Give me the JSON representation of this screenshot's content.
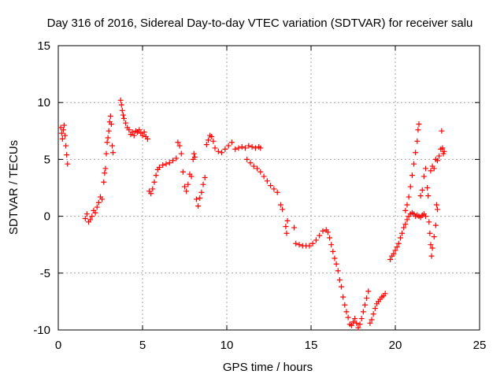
{
  "chart_data": {
    "type": "scatter",
    "title": "Day 316 of 2016, Sidereal Day-to-day VTEC variation (SDTVAR) for receiver salu",
    "xlabel": "GPS time / hours",
    "ylabel": "SDTVAR / TECUs",
    "xlim": [
      0,
      25
    ],
    "ylim": [
      -10,
      15
    ],
    "grid": true,
    "marker": "+",
    "color": "#ff0000",
    "x_ticks": [
      "0",
      "5",
      "10",
      "15",
      "20",
      "25"
    ],
    "y_ticks": [
      "-10",
      "-5",
      "0",
      "5",
      "10",
      "15"
    ],
    "x_tick_values": [
      0,
      5,
      10,
      15,
      20,
      25
    ],
    "y_tick_values": [
      -10,
      -5,
      0,
      5,
      10,
      15
    ],
    "series": [
      {
        "name": "SDTVAR",
        "points": [
          [
            0.15,
            7.8
          ],
          [
            0.2,
            7.3
          ],
          [
            0.25,
            6.8
          ],
          [
            0.3,
            7.6
          ],
          [
            0.35,
            8.0
          ],
          [
            0.4,
            7.1
          ],
          [
            0.45,
            6.2
          ],
          [
            0.5,
            5.4
          ],
          [
            0.55,
            4.6
          ],
          [
            1.6,
            -0.2
          ],
          [
            1.7,
            0.2
          ],
          [
            1.8,
            -0.5
          ],
          [
            1.9,
            -0.3
          ],
          [
            2.0,
            0.0
          ],
          [
            2.1,
            0.5
          ],
          [
            2.2,
            0.3
          ],
          [
            2.3,
            0.8
          ],
          [
            2.4,
            1.2
          ],
          [
            2.5,
            1.7
          ],
          [
            2.6,
            1.5
          ],
          [
            2.7,
            3.0
          ],
          [
            2.75,
            3.8
          ],
          [
            2.8,
            4.2
          ],
          [
            2.85,
            5.5
          ],
          [
            2.9,
            6.5
          ],
          [
            2.95,
            6.9
          ],
          [
            3.0,
            7.5
          ],
          [
            3.05,
            8.3
          ],
          [
            3.1,
            8.8
          ],
          [
            3.15,
            8.1
          ],
          [
            3.2,
            6.2
          ],
          [
            3.25,
            5.6
          ],
          [
            3.7,
            10.2
          ],
          [
            3.75,
            9.8
          ],
          [
            3.8,
            9.3
          ],
          [
            3.85,
            8.9
          ],
          [
            3.9,
            8.6
          ],
          [
            4.0,
            8.2
          ],
          [
            4.1,
            7.8
          ],
          [
            4.2,
            7.6
          ],
          [
            4.3,
            7.2
          ],
          [
            4.4,
            7.4
          ],
          [
            4.5,
            7.1
          ],
          [
            4.6,
            7.5
          ],
          [
            4.7,
            7.4
          ],
          [
            4.8,
            7.6
          ],
          [
            4.9,
            7.3
          ],
          [
            5.0,
            7.1
          ],
          [
            5.1,
            7.4
          ],
          [
            5.2,
            7.0
          ],
          [
            5.3,
            6.8
          ],
          [
            5.4,
            2.2
          ],
          [
            5.5,
            2.0
          ],
          [
            5.6,
            2.4
          ],
          [
            5.7,
            3.0
          ],
          [
            5.8,
            3.6
          ],
          [
            5.9,
            4.1
          ],
          [
            6.0,
            4.3
          ],
          [
            6.2,
            4.5
          ],
          [
            6.4,
            4.6
          ],
          [
            6.6,
            4.7
          ],
          [
            6.8,
            4.9
          ],
          [
            7.0,
            5.1
          ],
          [
            7.1,
            6.5
          ],
          [
            7.2,
            6.2
          ],
          [
            7.3,
            5.5
          ],
          [
            7.4,
            3.9
          ],
          [
            7.5,
            2.6
          ],
          [
            7.6,
            2.2
          ],
          [
            7.7,
            2.8
          ],
          [
            7.8,
            3.7
          ],
          [
            7.9,
            3.5
          ],
          [
            8.0,
            5.0
          ],
          [
            8.05,
            5.5
          ],
          [
            8.1,
            5.2
          ],
          [
            8.2,
            1.5
          ],
          [
            8.3,
            0.9
          ],
          [
            8.4,
            1.6
          ],
          [
            8.5,
            2.1
          ],
          [
            8.6,
            2.8
          ],
          [
            8.7,
            3.4
          ],
          [
            8.8,
            6.3
          ],
          [
            8.9,
            6.7
          ],
          [
            9.0,
            7.1
          ],
          [
            9.1,
            7.0
          ],
          [
            9.2,
            6.6
          ],
          [
            9.3,
            6.0
          ],
          [
            9.5,
            5.7
          ],
          [
            9.7,
            5.6
          ],
          [
            9.9,
            5.9
          ],
          [
            10.1,
            6.2
          ],
          [
            10.3,
            6.5
          ],
          [
            10.5,
            5.9
          ],
          [
            10.7,
            6.0
          ],
          [
            10.9,
            6.1
          ],
          [
            11.1,
            6.0
          ],
          [
            11.3,
            6.2
          ],
          [
            11.5,
            6.1
          ],
          [
            11.7,
            6.0
          ],
          [
            11.9,
            6.1
          ],
          [
            12.0,
            6.0
          ],
          [
            11.2,
            5.0
          ],
          [
            11.4,
            4.7
          ],
          [
            11.6,
            4.4
          ],
          [
            11.8,
            4.2
          ],
          [
            12.0,
            3.9
          ],
          [
            12.2,
            3.5
          ],
          [
            12.4,
            3.1
          ],
          [
            12.6,
            2.7
          ],
          [
            12.8,
            2.4
          ],
          [
            13.0,
            2.1
          ],
          [
            13.2,
            1.0
          ],
          [
            13.3,
            0.6
          ],
          [
            13.5,
            -0.9
          ],
          [
            13.55,
            -1.5
          ],
          [
            13.6,
            -0.4
          ],
          [
            14.0,
            -1.0
          ],
          [
            14.1,
            -2.4
          ],
          [
            14.3,
            -2.5
          ],
          [
            14.5,
            -2.6
          ],
          [
            14.7,
            -2.6
          ],
          [
            14.9,
            -2.6
          ],
          [
            15.1,
            -2.4
          ],
          [
            15.3,
            -2.1
          ],
          [
            15.5,
            -1.7
          ],
          [
            15.7,
            -1.3
          ],
          [
            15.9,
            -1.2
          ],
          [
            16.0,
            -1.4
          ],
          [
            16.1,
            -1.9
          ],
          [
            16.2,
            -2.5
          ],
          [
            16.3,
            -3.1
          ],
          [
            16.4,
            -3.7
          ],
          [
            16.5,
            -4.2
          ],
          [
            16.6,
            -4.8
          ],
          [
            16.7,
            -5.6
          ],
          [
            16.8,
            -6.2
          ],
          [
            16.9,
            -7.1
          ],
          [
            17.0,
            -7.8
          ],
          [
            17.1,
            -8.4
          ],
          [
            17.2,
            -8.9
          ],
          [
            17.3,
            -9.5
          ],
          [
            17.4,
            -9.6
          ],
          [
            17.5,
            -9.3
          ],
          [
            17.6,
            -9.0
          ],
          [
            17.7,
            -9.4
          ],
          [
            17.8,
            -9.8
          ],
          [
            17.9,
            -9.5
          ],
          [
            18.0,
            -9.0
          ],
          [
            18.1,
            -8.4
          ],
          [
            18.2,
            -7.8
          ],
          [
            18.3,
            -7.2
          ],
          [
            18.4,
            -6.6
          ],
          [
            18.5,
            -9.4
          ],
          [
            18.6,
            -9.1
          ],
          [
            18.7,
            -8.6
          ],
          [
            18.8,
            -8.1
          ],
          [
            18.9,
            -7.7
          ],
          [
            19.0,
            -7.5
          ],
          [
            19.1,
            -7.3
          ],
          [
            19.2,
            -7.1
          ],
          [
            19.3,
            -7.0
          ],
          [
            19.4,
            -6.8
          ],
          [
            19.7,
            -3.8
          ],
          [
            19.8,
            -3.5
          ],
          [
            19.9,
            -3.3
          ],
          [
            20.0,
            -3.0
          ],
          [
            20.1,
            -2.7
          ],
          [
            20.2,
            -2.4
          ],
          [
            20.3,
            -1.9
          ],
          [
            20.4,
            -1.5
          ],
          [
            20.5,
            -1.0
          ],
          [
            20.6,
            -0.7
          ],
          [
            20.7,
            -0.3
          ],
          [
            20.8,
            0.0
          ],
          [
            20.9,
            0.2
          ],
          [
            21.0,
            0.3
          ],
          [
            21.1,
            0.2
          ],
          [
            21.2,
            0.0
          ],
          [
            21.3,
            0.1
          ],
          [
            21.4,
            0.0
          ],
          [
            21.5,
            -0.1
          ],
          [
            21.6,
            0.1
          ],
          [
            21.7,
            0.2
          ],
          [
            21.8,
            0.0
          ],
          [
            20.6,
            0.5
          ],
          [
            20.7,
            1.0
          ],
          [
            20.8,
            1.7
          ],
          [
            20.9,
            2.6
          ],
          [
            21.0,
            3.6
          ],
          [
            21.1,
            4.6
          ],
          [
            21.2,
            5.6
          ],
          [
            21.3,
            6.6
          ],
          [
            21.35,
            7.6
          ],
          [
            21.4,
            8.1
          ],
          [
            21.5,
            1.8
          ],
          [
            21.6,
            2.3
          ],
          [
            21.7,
            3.5
          ],
          [
            21.8,
            4.2
          ],
          [
            21.9,
            2.5
          ],
          [
            21.95,
            1.8
          ],
          [
            22.0,
            -0.5
          ],
          [
            22.05,
            -1.5
          ],
          [
            22.1,
            -2.5
          ],
          [
            22.15,
            -3.5
          ],
          [
            22.2,
            -2.8
          ],
          [
            22.3,
            -1.8
          ],
          [
            22.4,
            -0.8
          ],
          [
            22.5,
            0.6
          ],
          [
            22.45,
            1.0
          ],
          [
            22.1,
            4.0
          ],
          [
            22.2,
            4.4
          ],
          [
            22.3,
            4.2
          ],
          [
            22.4,
            5.0
          ],
          [
            22.5,
            4.9
          ],
          [
            22.6,
            5.3
          ],
          [
            22.7,
            5.9
          ],
          [
            22.75,
            7.5
          ],
          [
            22.8,
            6.0
          ],
          [
            22.85,
            5.5
          ],
          [
            22.9,
            5.7
          ]
        ]
      }
    ]
  }
}
